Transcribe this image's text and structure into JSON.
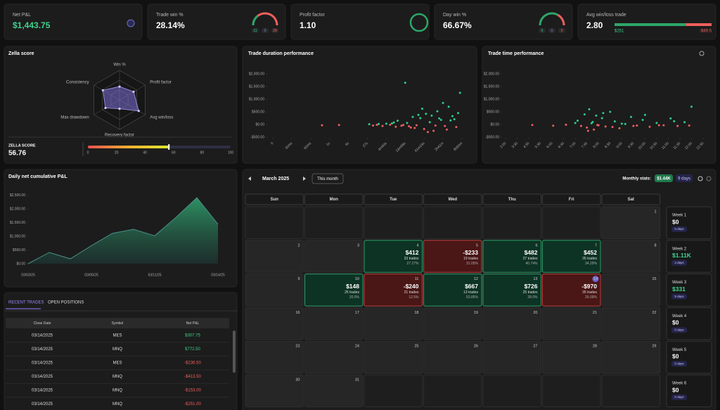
{
  "stats": [
    {
      "label": "Net P&L",
      "value": "$1,443.75"
    },
    {
      "label": "Trade win %",
      "value": "28.14%",
      "gauge": [
        11,
        0,
        28
      ]
    },
    {
      "label": "Profit factor",
      "value": "1.10"
    },
    {
      "label": "Day win %",
      "value": "66.67%",
      "gauge": [
        6,
        0,
        3
      ]
    },
    {
      "label": "Avg win/loss trade",
      "value": "2.80",
      "bar": {
        "values": [
          251,
          -89.5
        ],
        "value_labels": [
          "$251",
          "-$89.5"
        ]
      }
    }
  ],
  "zella": {
    "title": "Zella score",
    "score_label": "ZELLA SCORE",
    "score": 56.76,
    "xlim": [
      0,
      100
    ],
    "xticks": [
      0,
      20,
      40,
      60,
      80,
      100
    ]
  },
  "chart_data": [
    {
      "type": "radar",
      "categories": [
        "Win %",
        "Profit factor",
        "Avg win/loss",
        "Recovery factor",
        "Max drawdown",
        "Consistency"
      ],
      "values": [
        45,
        55,
        75,
        30,
        55,
        65
      ],
      "ylim": [
        0,
        100
      ],
      "color": "#7b6fd6"
    },
    {
      "type": "scatter",
      "title": "Trade duration performance",
      "x": [
        2.6,
        3.5,
        5.1,
        5.3,
        5.6,
        5.8,
        6.0,
        6.2,
        6.4,
        6.5,
        6.6,
        6.8,
        7.0,
        7.1,
        7.3,
        7.4,
        7.6,
        7.8,
        8.0,
        8.1,
        8.3,
        8.5,
        8.7,
        8.9,
        9.1,
        9.3,
        9.5,
        9.7,
        9.9,
        6.9,
        7.7,
        8.2,
        8.8,
        9.4,
        9.8,
        7.2,
        7.9,
        8.6,
        9.0,
        9.6,
        5.5,
        6.3,
        7.5,
        8.4,
        9.2
      ],
      "values": [
        -30,
        -20,
        10,
        -40,
        20,
        -60,
        30,
        -10,
        80,
        -90,
        150,
        -50,
        1650,
        60,
        -120,
        300,
        -30,
        250,
        -180,
        420,
        90,
        -250,
        520,
        180,
        -60,
        700,
        330,
        -100,
        1250,
        -20,
        380,
        -300,
        240,
        160,
        450,
        -70,
        620,
        -40,
        850,
        210,
        -15,
        40,
        -140,
        350,
        -200
      ],
      "xlim": [
        -0.3,
        10.3
      ],
      "xticks": [
        0,
        {
          "value": 1,
          "label": "30ms"
        },
        {
          "value": 2,
          "label": "60ms"
        },
        {
          "value": 3,
          "label": "1s"
        },
        {
          "value": 4,
          "label": "5s"
        },
        {
          "value": 5,
          "label": "27s"
        },
        {
          "value": 6,
          "label": "4m50s"
        },
        {
          "value": 7,
          "label": "13m58s"
        },
        {
          "value": 8,
          "label": "41m19s"
        },
        {
          "value": 9,
          "label": "2h41m"
        },
        {
          "value": 10,
          "label": "8h50m"
        }
      ],
      "ylim": [
        -500,
        2000
      ],
      "yticks": [
        {
          "value": -500,
          "label": "-$500.00"
        },
        {
          "value": 0,
          "label": "$0.00"
        },
        {
          "value": 500,
          "label": "$500.00"
        },
        {
          "value": 1000,
          "label": "$1,000.00"
        },
        {
          "value": 1500,
          "label": "$1,500.00"
        },
        {
          "value": 2000,
          "label": "$2,000.00"
        }
      ],
      "colors": [
        "#2ecc8f",
        "#f0605d"
      ]
    },
    {
      "type": "scatter",
      "title": "Trade time performance",
      "x": [
        6.2,
        6.5,
        6.8,
        7.0,
        7.2,
        7.4,
        7.6,
        7.8,
        8.0,
        8.3,
        8.6,
        9.0,
        9.4,
        9.8,
        10.3,
        10.8,
        11.3,
        11.8,
        12.4,
        13.0,
        13.6,
        14.2,
        14.8,
        15.4,
        16.0,
        7.1,
        7.5,
        7.9,
        8.4,
        9.2,
        10.0,
        11.0,
        12.0,
        13.2,
        14.5,
        15.8,
        2.3,
        4.1,
        5.2,
        6.0
      ],
      "values": [
        150,
        -60,
        400,
        -120,
        600,
        50,
        -200,
        350,
        -30,
        250,
        -80,
        500,
        120,
        -150,
        20,
        300,
        -40,
        180,
        -90,
        60,
        -30,
        240,
        -60,
        90,
        700,
        -250,
        100,
        -20,
        450,
        -100,
        30,
        -60,
        380,
        -30,
        130,
        -40,
        -20,
        -50,
        -10,
        60
      ],
      "xlim": [
        -0.3,
        17.3
      ],
      "xticks": [
        {
          "value": 0,
          "label": "2:00"
        },
        {
          "value": 1,
          "label": "3:30"
        },
        {
          "value": 2,
          "label": "4:30"
        },
        {
          "value": 3,
          "label": "5:30"
        },
        {
          "value": 4,
          "label": "6:00"
        },
        {
          "value": 5,
          "label": "6:30"
        },
        {
          "value": 6,
          "label": "7:00"
        },
        {
          "value": 7,
          "label": "7:30"
        },
        {
          "value": 8,
          "label": "8:00"
        },
        {
          "value": 9,
          "label": "8:30"
        },
        {
          "value": 10,
          "label": "9:00"
        },
        {
          "value": 11,
          "label": "9:30"
        },
        {
          "value": 12,
          "label": "10:00"
        },
        {
          "value": 13,
          "label": "10:30"
        },
        {
          "value": 14,
          "label": "11:00"
        },
        {
          "value": 15,
          "label": "11:30"
        },
        {
          "value": 16,
          "label": "12:00"
        },
        {
          "value": 17,
          "label": "12:30"
        }
      ],
      "ylim": [
        -500,
        2000
      ],
      "yticks": [
        {
          "value": -500,
          "label": "-$500.00"
        },
        {
          "value": 0,
          "label": "$0.00"
        },
        {
          "value": 500,
          "label": "$500.00"
        },
        {
          "value": 1000,
          "label": "$1,000.00"
        },
        {
          "value": 1500,
          "label": "$1,500.00"
        },
        {
          "value": 2000,
          "label": "$2,000.00"
        }
      ],
      "colors": [
        "#2ecc8f",
        "#f0605d"
      ]
    },
    {
      "type": "area",
      "title": "Daily net cumulative P&L",
      "categories": [
        "03/03/25",
        null,
        null,
        "03/06/25",
        null,
        null,
        "03/11/25",
        null,
        null,
        "03/14/25"
      ],
      "values": [
        0,
        412,
        179,
        661,
        1113,
        1261,
        1021,
        1688,
        2414,
        1444
      ],
      "ylim": [
        0,
        2700
      ],
      "yticks": [
        {
          "value": 0,
          "label": "$0.00"
        },
        {
          "value": 500,
          "label": "$500.00"
        },
        {
          "value": 1000,
          "label": "$1,000.00"
        },
        {
          "value": 1500,
          "label": "$1,500.00"
        },
        {
          "value": 2000,
          "label": "$2,000.00"
        },
        {
          "value": 2500,
          "label": "$2,500.00"
        }
      ],
      "color": "#2f9e6a"
    }
  ],
  "trades": {
    "tabs": [
      "RECENT TRADES",
      "OPEN POSITIONS"
    ],
    "header": [
      "Close Date",
      "Symbol",
      "Net P&L"
    ],
    "rows": [
      [
        "03/14/2025",
        "MES",
        "$307.75"
      ],
      [
        "03/14/2025",
        "MNQ",
        "$772.50"
      ],
      [
        "03/14/2025",
        "MES",
        "-$236.50"
      ],
      [
        "03/14/2025",
        "MNQ",
        "-$413.50"
      ],
      [
        "03/14/2025",
        "MNQ",
        "-$153.00"
      ],
      [
        "03/14/2025",
        "MNQ",
        "-$251.00"
      ]
    ]
  },
  "calendar": {
    "month": "March 2025",
    "button": "This month",
    "stats_label": "Monthly stats:",
    "stats_value": "$1.44K",
    "stats_days": "9 days",
    "weekdays": [
      "Sun",
      "Mon",
      "Tue",
      "Wed",
      "Thu",
      "Fri",
      "Sat"
    ],
    "rows": [
      [
        null,
        null,
        null,
        null,
        null,
        null,
        {
          "day": 1
        }
      ],
      [
        {
          "day": 2
        },
        {
          "day": 3
        },
        {
          "day": 4,
          "pnl": "$412",
          "trades": "33 trades",
          "ratio": "27.27%"
        },
        {
          "day": 5,
          "pnl": "-$233",
          "trades": "19 trades",
          "ratio": "31.05%"
        },
        {
          "day": 6,
          "pnl": "$482",
          "trades": "27 trades",
          "ratio": "40.74%"
        },
        {
          "day": 7,
          "pnl": "$452",
          "trades": "35 trades",
          "ratio": "34.29%"
        },
        {
          "day": 8
        }
      ],
      [
        {
          "day": 9
        },
        {
          "day": 10,
          "pnl": "$148",
          "trades": "25 trades",
          "ratio": "20.0%"
        },
        {
          "day": 11,
          "pnl": "-$240",
          "trades": "21 trades",
          "ratio": "12.5%"
        },
        {
          "day": 12,
          "pnl": "$667",
          "trades": "13 trades",
          "ratio": "53.85%"
        },
        {
          "day": 13,
          "pnl": "$726",
          "trades": "25 trades",
          "ratio": "28.0%"
        },
        {
          "day": 14,
          "pnl": "-$970",
          "trades": "35 trades",
          "ratio": "26.09%",
          "today": true
        },
        {
          "day": 15
        }
      ],
      [
        {
          "day": 16
        },
        {
          "day": 17
        },
        {
          "day": 18
        },
        {
          "day": 19
        },
        {
          "day": 20
        },
        {
          "day": 21
        },
        {
          "day": 22
        }
      ],
      [
        {
          "day": 23
        },
        {
          "day": 24
        },
        {
          "day": 25
        },
        {
          "day": 26
        },
        {
          "day": 27
        },
        {
          "day": 28
        },
        {
          "day": 29
        }
      ],
      [
        {
          "day": 30
        },
        {
          "day": 31
        },
        null,
        null,
        null,
        null,
        null
      ]
    ],
    "weeks": [
      {
        "label": "Week 1",
        "value": "$0",
        "days": "0 days"
      },
      {
        "label": "Week 2",
        "value": "$1.11K",
        "days": "4 days"
      },
      {
        "label": "Week 3",
        "value": "$331",
        "days": "5 days"
      },
      {
        "label": "Week 4",
        "value": "$0",
        "days": "0 days"
      },
      {
        "label": "Week 5",
        "value": "$0",
        "days": "0 days"
      },
      {
        "label": "Week 6",
        "value": "$0",
        "days": "0 days"
      }
    ]
  }
}
